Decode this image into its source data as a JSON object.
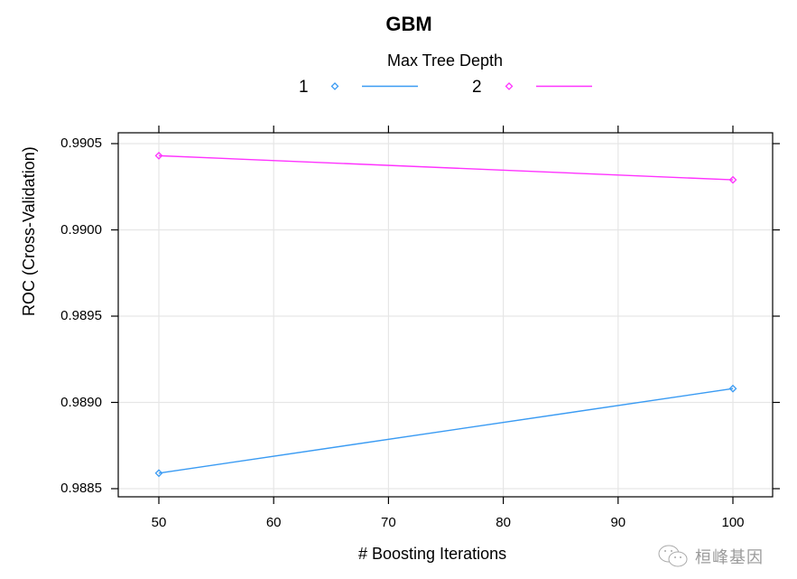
{
  "chart_data": {
    "type": "line",
    "title": "GBM",
    "xlabel": "# Boosting Iterations",
    "ylabel": "ROC (Cross-Validation)",
    "x": [
      50,
      100
    ],
    "x_ticks": [
      "50",
      "60",
      "70",
      "80",
      "90",
      "100"
    ],
    "y_ticks": [
      "0.9885",
      "0.9890",
      "0.9895",
      "0.9900",
      "0.9905"
    ],
    "xlim": [
      46.5,
      103.5
    ],
    "ylim": [
      0.98845,
      0.99066
    ],
    "grid": true,
    "legend": {
      "title": "Max Tree Depth",
      "position": "top",
      "entries": [
        "1",
        "2"
      ]
    },
    "series": [
      {
        "name": "1",
        "color": "#3a9bf3",
        "marker": "diamond-open",
        "values": [
          0.98859,
          0.98908
        ]
      },
      {
        "name": "2",
        "color": "#ff33ff",
        "marker": "diamond-open",
        "values": [
          0.99043,
          0.99029
        ]
      }
    ]
  },
  "watermark": {
    "text": "桓峰基因"
  }
}
